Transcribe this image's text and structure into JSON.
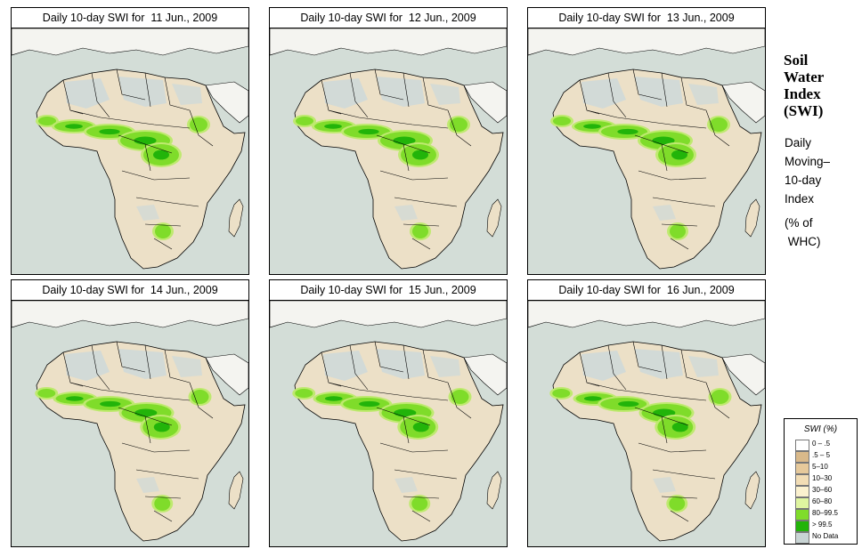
{
  "panels": [
    {
      "title": "Daily 10-day SWI for  11 Jun., 2009"
    },
    {
      "title": "Daily 10-day SWI for  12 Jun., 2009"
    },
    {
      "title": "Daily 10-day SWI for  13 Jun., 2009"
    },
    {
      "title": "Daily 10-day SWI for  14 Jun., 2009"
    },
    {
      "title": "Daily 10-day SWI for  15 Jun., 2009"
    },
    {
      "title": "Daily 10-day SWI for  16 Jun., 2009"
    }
  ],
  "side": {
    "title_lines": [
      "Soil",
      "Water",
      "Index",
      "(SWI)"
    ],
    "sub_lines": [
      "Daily",
      "Moving–",
      "10-day",
      "Index"
    ],
    "whc_lines": [
      "(% of",
      " WHC)"
    ]
  },
  "legend": {
    "title": "SWI (%)",
    "items": [
      {
        "label": "0 – .5",
        "color": "#ffffff"
      },
      {
        "label": ".5 – 5",
        "color": "#d9b98a"
      },
      {
        "label": "5–10",
        "color": "#e6c99b"
      },
      {
        "label": "10–30",
        "color": "#f2ddb5"
      },
      {
        "label": "30–60",
        "color": "#fbf1cf"
      },
      {
        "label": "60–80",
        "color": "#dff5a0"
      },
      {
        "label": "80–99.5",
        "color": "#7fdc2a"
      },
      {
        "label": "> 99.5",
        "color": "#22b40a"
      },
      {
        "label": "No Data",
        "color": "#c8d4d4"
      }
    ]
  },
  "colors": {
    "sea": "#d3ddd7",
    "land": "#ece0c7",
    "desert_nodata": "#cfd9d8",
    "green_light": "#bfe970",
    "green_mid": "#7fdc2a",
    "green_dark": "#22b40a"
  }
}
